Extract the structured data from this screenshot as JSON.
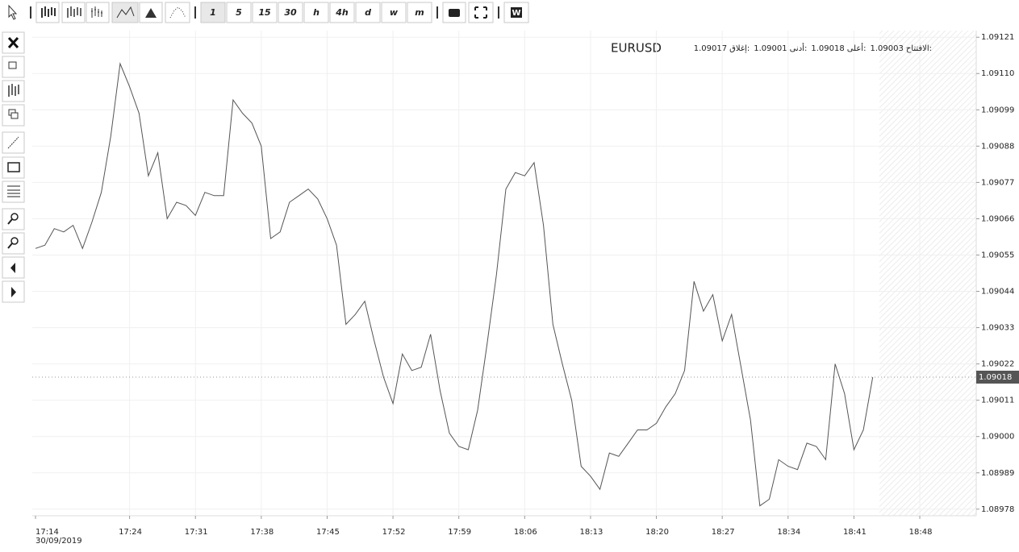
{
  "toolbar": {
    "timeframes": [
      "1",
      "5",
      "15",
      "30",
      "h",
      "4h",
      "d",
      "w",
      "m"
    ],
    "extra": "W"
  },
  "chart_data": {
    "type": "line",
    "symbol": "EURUSD",
    "ohlc": [
      {
        "label": "الافتتاح:",
        "value": 1.09003
      },
      {
        "label": "أعلى:",
        "value": 1.09018
      },
      {
        "label": "أدنى:",
        "value": 1.09001
      },
      {
        "label": "إغلاق:",
        "value": 1.09017
      }
    ],
    "date": "30/09/2019",
    "categories": [
      "17:14",
      null,
      null,
      null,
      null,
      null,
      null,
      null,
      null,
      null,
      "17:24",
      null,
      null,
      null,
      null,
      null,
      null,
      "17:31",
      null,
      null,
      null,
      null,
      null,
      null,
      "17:38",
      null,
      null,
      null,
      null,
      null,
      null,
      "17:45",
      null,
      null,
      null,
      null,
      null,
      null,
      "17:52",
      null,
      null,
      null,
      null,
      null,
      null,
      "17:59",
      null,
      null,
      null,
      null,
      null,
      null,
      "18:06",
      null,
      null,
      null,
      null,
      null,
      null,
      "18:13",
      null,
      null,
      null,
      null,
      null,
      null,
      "18:20",
      null,
      null,
      null,
      null,
      null,
      null,
      "18:27",
      null,
      null,
      null,
      null,
      null,
      null,
      "18:34",
      null,
      null,
      null,
      null,
      null,
      null,
      "18:41",
      null,
      null,
      null,
      null,
      null,
      null,
      "18:48"
    ],
    "series": [
      {
        "name": "EURUSD",
        "color": "#555555",
        "values": [
          1.09057,
          1.09058,
          1.09063,
          1.09062,
          1.09064,
          1.09057,
          1.09065,
          1.09074,
          1.09091,
          1.09113,
          1.09106,
          1.09098,
          1.09079,
          1.09086,
          1.09066,
          1.09071,
          1.0907,
          1.09067,
          1.09074,
          1.09073,
          1.09073,
          1.09102,
          1.09098,
          1.09095,
          1.09088,
          1.0906,
          1.09062,
          1.09071,
          1.09073,
          1.09075,
          1.09072,
          1.09066,
          1.09058,
          1.09034,
          1.09037,
          1.09041,
          1.09029,
          1.09018,
          1.0901,
          1.09025,
          1.0902,
          1.09021,
          1.09031,
          1.09014,
          1.09001,
          1.08997,
          1.08996,
          1.09008,
          1.09028,
          1.09049,
          1.09075,
          1.0908,
          1.09079,
          1.09083,
          1.09064,
          1.09034,
          1.09022,
          1.09011,
          1.08991,
          1.08988,
          1.08984,
          1.08995,
          1.08994,
          1.08998,
          1.09002,
          1.09002,
          1.09004,
          1.09009,
          1.09013,
          1.0902,
          1.09047,
          1.09038,
          1.09043,
          1.09029,
          1.09037,
          1.09021,
          1.09005,
          1.08979,
          1.08981,
          1.08993,
          1.08991,
          1.0899,
          1.08998,
          1.08997,
          1.08993,
          1.09022,
          1.09013,
          1.08996,
          1.09002,
          1.09018,
          null,
          null,
          null,
          null,
          null
        ]
      }
    ],
    "last_price": 1.09018,
    "ylim": [
      1.08976,
      1.09123
    ],
    "yticks": [
      1.08978,
      1.08989,
      {
        "value": 1.09,
        "label": "1.09000"
      },
      1.09011,
      1.09022,
      1.09033,
      1.09044,
      1.09055,
      1.09066,
      1.09077,
      1.09088,
      1.09099,
      {
        "value": 1.0911,
        "label": "1.09110"
      },
      1.09121
    ],
    "grid": true
  }
}
